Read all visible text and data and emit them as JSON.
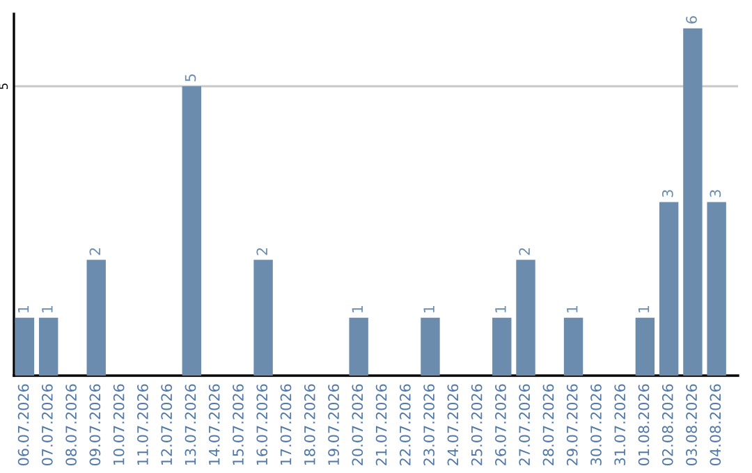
{
  "chart_data": {
    "type": "bar",
    "categories": [
      "06.07.2026",
      "07.07.2026",
      "08.07.2026",
      "09.07.2026",
      "10.07.2026",
      "11.07.2026",
      "12.07.2026",
      "13.07.2026",
      "14.07.2026",
      "15.07.2026",
      "16.07.2026",
      "17.07.2026",
      "18.07.2026",
      "19.07.2026",
      "20.07.2026",
      "21.07.2026",
      "22.07.2026",
      "23.07.2026",
      "24.07.2026",
      "25.07.2026",
      "26.07.2026",
      "27.07.2026",
      "28.07.2026",
      "29.07.2026",
      "30.07.2026",
      "31.07.2026",
      "01.08.2026",
      "02.08.2026",
      "03.08.2026",
      "04.08.2026"
    ],
    "values": [
      1,
      1,
      0,
      2,
      0,
      0,
      0,
      5,
      0,
      0,
      2,
      0,
      0,
      0,
      1,
      0,
      0,
      1,
      0,
      0,
      1,
      2,
      0,
      1,
      0,
      0,
      1,
      3,
      6,
      3
    ],
    "value_labels": [
      "1",
      "1",
      null,
      "2",
      null,
      null,
      null,
      "5",
      null,
      null,
      "2",
      null,
      null,
      null,
      "1",
      null,
      null,
      "1",
      null,
      null,
      "1",
      "2",
      null,
      "1",
      null,
      null,
      "1",
      "3",
      "6",
      "3"
    ],
    "color": "#6b8cad",
    "ylim": [
      0,
      6.25
    ],
    "yticks": [
      5
    ],
    "grid": "y"
  }
}
